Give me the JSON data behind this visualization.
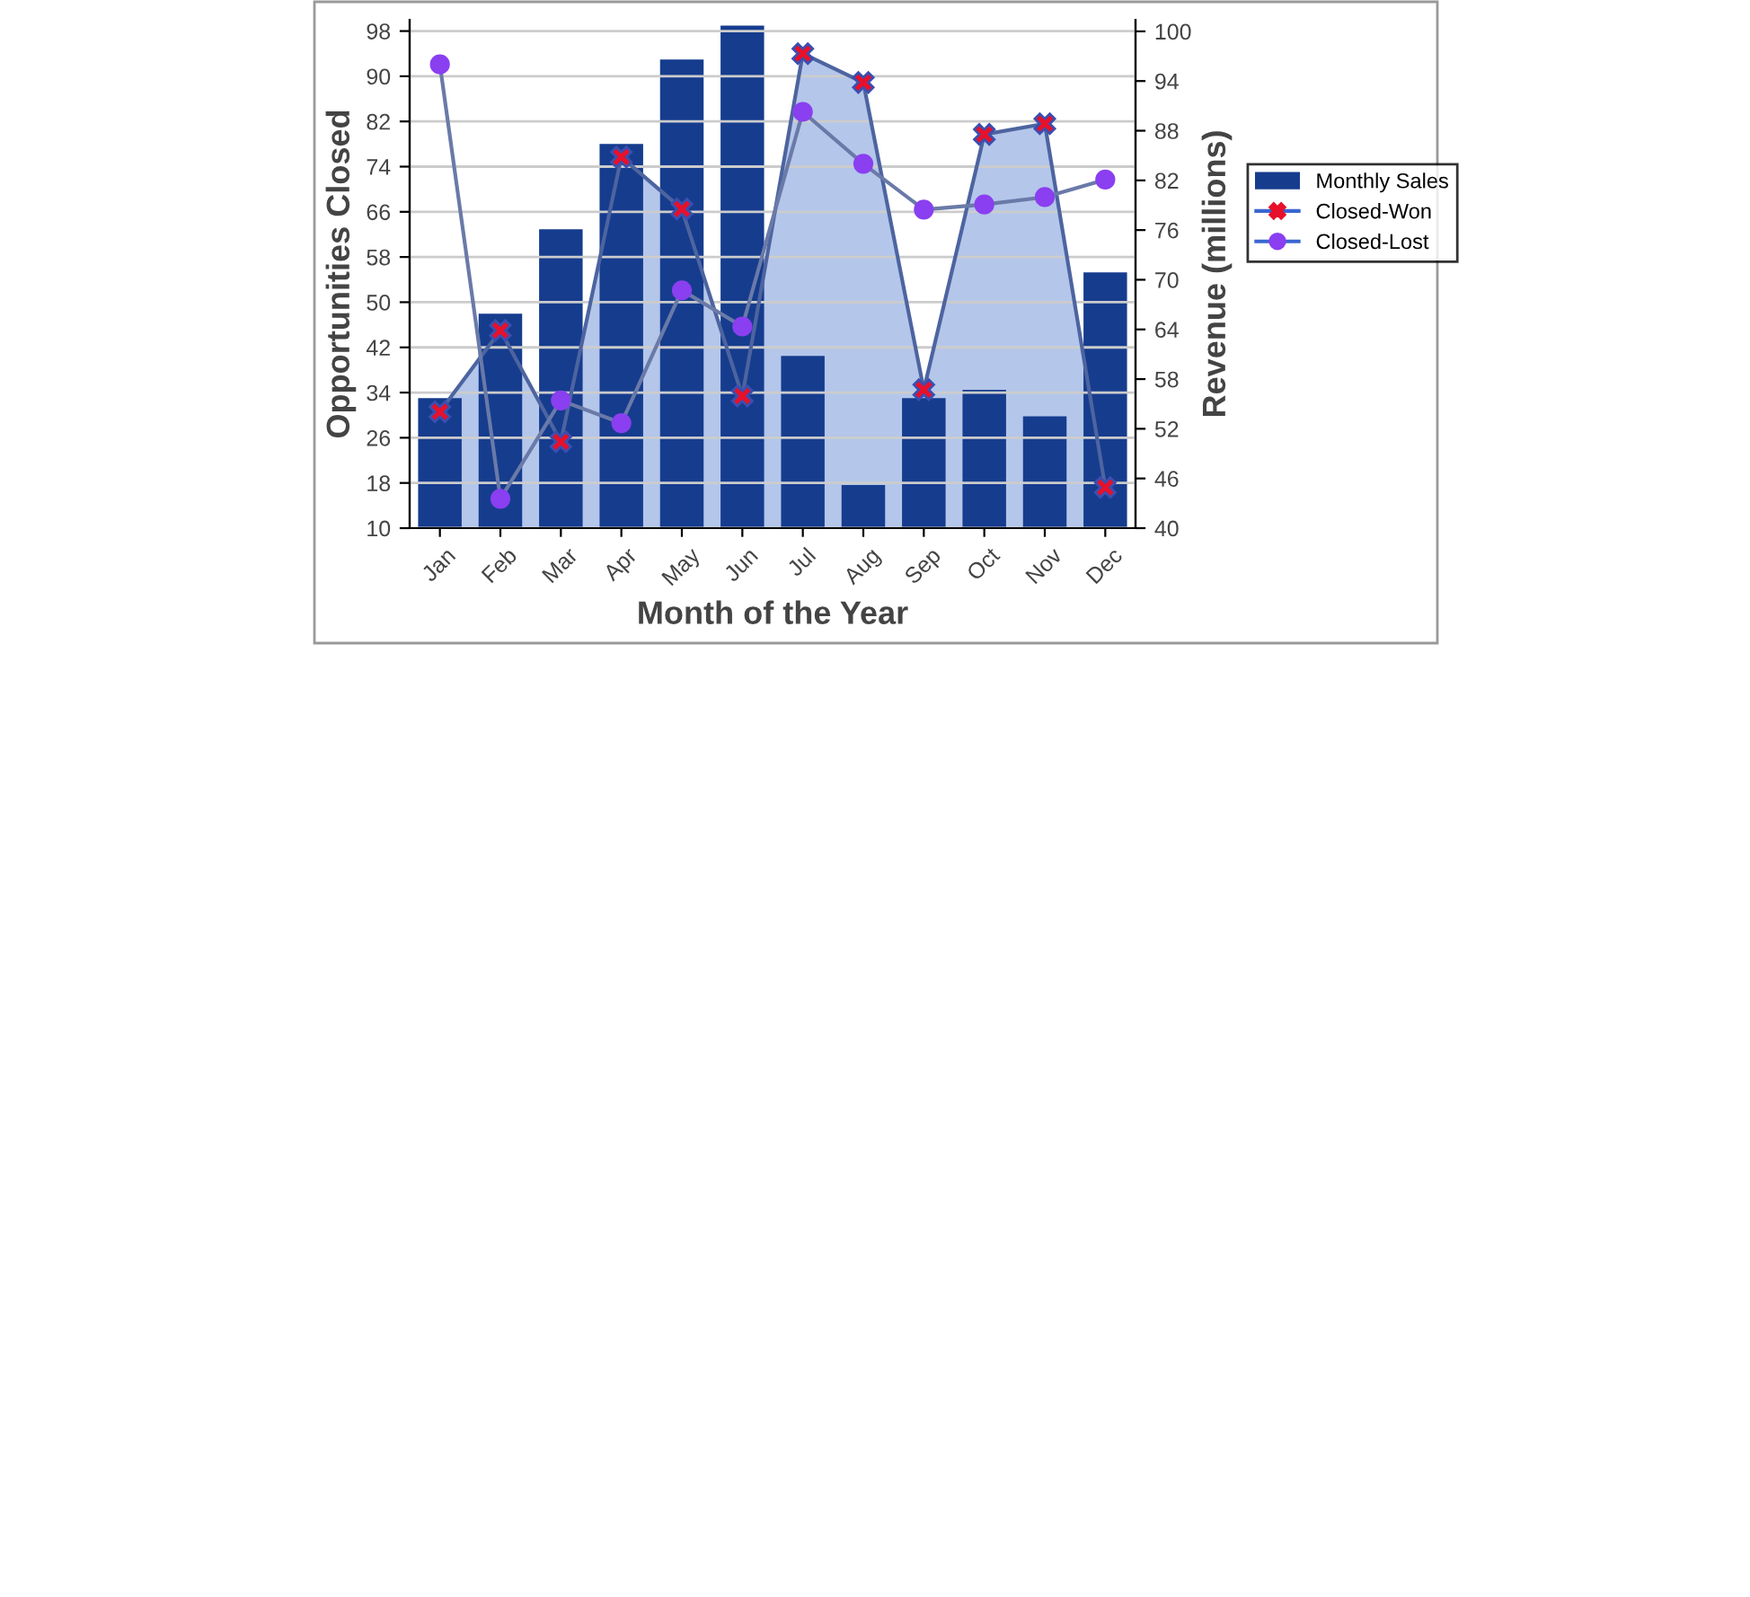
{
  "chart_data": {
    "type": "bar",
    "xlabel": "Month of the Year",
    "ylabel": "Opportunities Closed",
    "y2label": "Revenue (millions)",
    "categories": [
      "Jan",
      "Feb",
      "Mar",
      "Apr",
      "May",
      "Jun",
      "Jul",
      "Aug",
      "Sep",
      "Oct",
      "Nov",
      "Dec"
    ],
    "series": [
      {
        "name": "Monthly Sales",
        "axis": "y2",
        "color": "#163c8e",
        "values": [
          55.7,
          65.9,
          76.1,
          86.4,
          96.6,
          100.7,
          60.8,
          45.2,
          55.7,
          56.7,
          53.5,
          70.9
        ]
      },
      {
        "name": "Closed-Won",
        "type": "area",
        "color": "#e8102a",
        "marker": "cross",
        "values": [
          30.6,
          45,
          25.3,
          75.7,
          66.5,
          33.4,
          94,
          88.9,
          34.5,
          79.7,
          81.6,
          17.2
        ]
      },
      {
        "name": "Closed-Lost",
        "type": "line",
        "color": "#8a3ff0",
        "marker": "circle",
        "values": [
          92.1,
          15.2,
          32.6,
          28.6,
          52.1,
          45.7,
          83.7,
          74.5,
          66.4,
          67.3,
          68.6,
          71.7
        ]
      }
    ],
    "ylim": [
      10,
      100
    ],
    "yticks": [
      10,
      18,
      26,
      34,
      42,
      50,
      58,
      66,
      74,
      82,
      90,
      98
    ],
    "y2lim": [
      40,
      101.4
    ],
    "y2ticks": [
      40,
      46,
      52,
      58,
      64,
      70,
      76,
      82,
      88,
      94,
      100
    ],
    "grid": "y",
    "legend": "right"
  }
}
